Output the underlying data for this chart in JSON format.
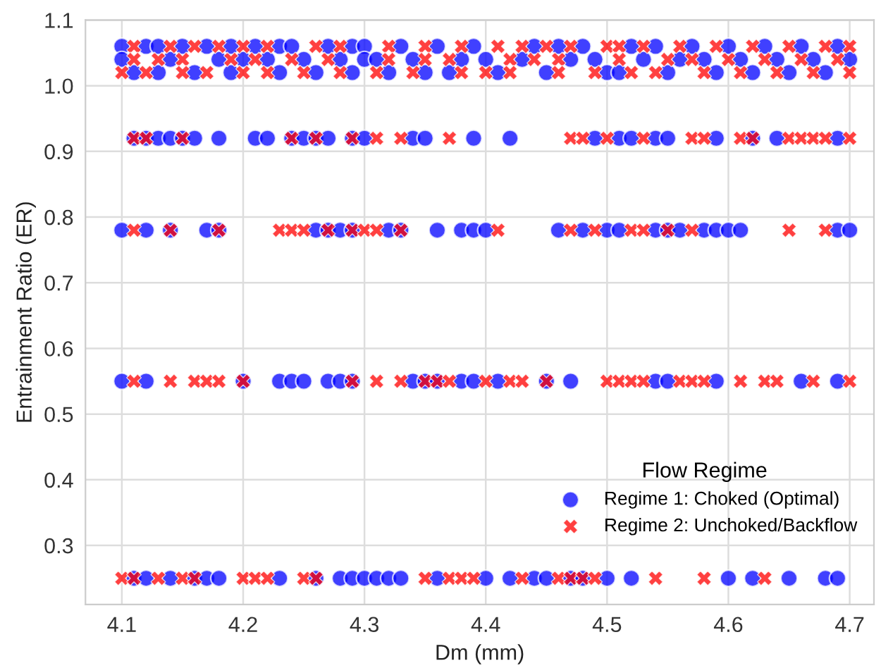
{
  "chart_data": {
    "type": "scatter",
    "xlabel": "Dm (mm)",
    "ylabel": "Entrainment Ratio (ER)",
    "legend_title": "Flow Regime",
    "xlim": [
      4.07,
      4.72
    ],
    "xticks": [
      4.1,
      4.2,
      4.3,
      4.4,
      4.5,
      4.6,
      4.7
    ],
    "ylim": [
      0.21,
      1.1
    ],
    "yticks": [
      0.3,
      0.4,
      0.5,
      0.6,
      0.7,
      0.8,
      0.9,
      {
        "value": 1.0,
        "label": "1.0"
      },
      1.1
    ],
    "grid": true,
    "legend": "bottom right",
    "series": [
      {
        "name": "Regime 1: Choked (Optimal)",
        "color": "#0000ff",
        "marker": "circle",
        "x": [
          4.1,
          4.12,
          4.13,
          4.15,
          4.17,
          4.19,
          4.21,
          4.23,
          4.24,
          4.27,
          4.29,
          4.3,
          4.33,
          4.36,
          4.39,
          4.44,
          4.46,
          4.48,
          4.52,
          4.54,
          4.57,
          4.6,
          4.63,
          4.66,
          4.69,
          4.1,
          4.14,
          4.18,
          4.2,
          4.22,
          4.25,
          4.28,
          4.3,
          4.31,
          4.34,
          4.38,
          4.4,
          4.43,
          4.47,
          4.49,
          4.53,
          4.56,
          4.58,
          4.61,
          4.64,
          4.67,
          4.7,
          4.11,
          4.13,
          4.16,
          4.19,
          4.23,
          4.26,
          4.29,
          4.32,
          4.35,
          4.37,
          4.41,
          4.45,
          4.5,
          4.51,
          4.55,
          4.59,
          4.62,
          4.65,
          4.68,
          4.11,
          4.12,
          4.13,
          4.14,
          4.15,
          4.16,
          4.18,
          4.21,
          4.22,
          4.24,
          4.25,
          4.26,
          4.27,
          4.29,
          4.3,
          4.34,
          4.35,
          4.39,
          4.42,
          4.49,
          4.51,
          4.52,
          4.54,
          4.55,
          4.59,
          4.62,
          4.64,
          4.69,
          4.1,
          4.12,
          4.14,
          4.17,
          4.18,
          4.26,
          4.27,
          4.28,
          4.29,
          4.32,
          4.33,
          4.36,
          4.38,
          4.39,
          4.4,
          4.46,
          4.48,
          4.5,
          4.51,
          4.54,
          4.55,
          4.56,
          4.58,
          4.59,
          4.6,
          4.61,
          4.69,
          4.7,
          4.1,
          4.12,
          4.2,
          4.23,
          4.24,
          4.25,
          4.27,
          4.28,
          4.29,
          4.34,
          4.35,
          4.36,
          4.38,
          4.39,
          4.41,
          4.45,
          4.47,
          4.54,
          4.55,
          4.59,
          4.66,
          4.69,
          4.11,
          4.12,
          4.14,
          4.16,
          4.17,
          4.18,
          4.23,
          4.26,
          4.28,
          4.29,
          4.3,
          4.31,
          4.32,
          4.33,
          4.36,
          4.4,
          4.42,
          4.44,
          4.45,
          4.47,
          4.48,
          4.5,
          4.52,
          4.6,
          4.62,
          4.65,
          4.68,
          4.69
        ],
        "values": [
          1.06,
          1.06,
          1.06,
          1.06,
          1.06,
          1.06,
          1.06,
          1.06,
          1.06,
          1.06,
          1.06,
          1.06,
          1.06,
          1.06,
          1.06,
          1.06,
          1.06,
          1.06,
          1.06,
          1.06,
          1.06,
          1.06,
          1.06,
          1.06,
          1.06,
          1.04,
          1.04,
          1.04,
          1.04,
          1.04,
          1.04,
          1.04,
          1.04,
          1.04,
          1.04,
          1.04,
          1.04,
          1.04,
          1.04,
          1.04,
          1.04,
          1.04,
          1.04,
          1.04,
          1.04,
          1.04,
          1.04,
          1.02,
          1.02,
          1.02,
          1.02,
          1.02,
          1.02,
          1.02,
          1.02,
          1.02,
          1.02,
          1.02,
          1.02,
          1.02,
          1.02,
          1.02,
          1.02,
          1.02,
          1.02,
          1.02,
          0.92,
          0.92,
          0.92,
          0.92,
          0.92,
          0.92,
          0.92,
          0.92,
          0.92,
          0.92,
          0.92,
          0.92,
          0.92,
          0.92,
          0.92,
          0.92,
          0.92,
          0.92,
          0.92,
          0.92,
          0.92,
          0.92,
          0.92,
          0.92,
          0.92,
          0.92,
          0.92,
          0.92,
          0.78,
          0.78,
          0.78,
          0.78,
          0.78,
          0.78,
          0.78,
          0.78,
          0.78,
          0.78,
          0.78,
          0.78,
          0.78,
          0.78,
          0.78,
          0.78,
          0.78,
          0.78,
          0.78,
          0.78,
          0.78,
          0.78,
          0.78,
          0.78,
          0.78,
          0.78,
          0.78,
          0.78,
          0.55,
          0.55,
          0.55,
          0.55,
          0.55,
          0.55,
          0.55,
          0.55,
          0.55,
          0.55,
          0.55,
          0.55,
          0.55,
          0.55,
          0.55,
          0.55,
          0.55,
          0.55,
          0.55,
          0.55,
          0.55,
          0.55,
          0.25,
          0.25,
          0.25,
          0.25,
          0.25,
          0.25,
          0.25,
          0.25,
          0.25,
          0.25,
          0.25,
          0.25,
          0.25,
          0.25,
          0.25,
          0.25,
          0.25,
          0.25,
          0.25,
          0.25,
          0.25,
          0.25,
          0.25,
          0.25,
          0.25,
          0.25,
          0.25,
          0.25
        ]
      },
      {
        "name": "Regime 2: Unchoked/Backflow",
        "color": "#ff0000",
        "marker": "cross",
        "x": [
          4.11,
          4.14,
          4.16,
          4.18,
          4.2,
          4.22,
          4.26,
          4.28,
          4.32,
          4.35,
          4.38,
          4.41,
          4.43,
          4.45,
          4.47,
          4.5,
          4.51,
          4.53,
          4.56,
          4.59,
          4.62,
          4.65,
          4.68,
          4.7,
          4.11,
          4.13,
          4.15,
          4.19,
          4.21,
          4.24,
          4.27,
          4.32,
          4.35,
          4.37,
          4.42,
          4.44,
          4.46,
          4.51,
          4.55,
          4.57,
          4.6,
          4.63,
          4.66,
          4.69,
          4.1,
          4.12,
          4.15,
          4.17,
          4.2,
          4.22,
          4.25,
          4.28,
          4.31,
          4.34,
          4.38,
          4.4,
          4.42,
          4.46,
          4.49,
          4.52,
          4.54,
          4.58,
          4.61,
          4.64,
          4.67,
          4.7,
          4.11,
          4.12,
          4.15,
          4.24,
          4.26,
          4.29,
          4.31,
          4.33,
          4.37,
          4.47,
          4.48,
          4.5,
          4.53,
          4.57,
          4.58,
          4.61,
          4.62,
          4.65,
          4.66,
          4.67,
          4.68,
          4.7,
          4.11,
          4.14,
          4.18,
          4.23,
          4.24,
          4.25,
          4.27,
          4.29,
          4.3,
          4.31,
          4.33,
          4.41,
          4.47,
          4.49,
          4.52,
          4.53,
          4.55,
          4.57,
          4.65,
          4.68,
          4.11,
          4.14,
          4.16,
          4.17,
          4.18,
          4.2,
          4.29,
          4.31,
          4.33,
          4.35,
          4.36,
          4.37,
          4.4,
          4.42,
          4.43,
          4.45,
          4.5,
          4.51,
          4.52,
          4.53,
          4.56,
          4.57,
          4.58,
          4.61,
          4.63,
          4.64,
          4.67,
          4.7,
          4.1,
          4.11,
          4.13,
          4.15,
          4.16,
          4.2,
          4.21,
          4.22,
          4.25,
          4.26,
          4.35,
          4.37,
          4.38,
          4.39,
          4.43,
          4.46,
          4.47,
          4.48,
          4.49,
          4.54,
          4.58,
          4.63
        ],
        "values": [
          1.06,
          1.06,
          1.06,
          1.06,
          1.06,
          1.06,
          1.06,
          1.06,
          1.06,
          1.06,
          1.06,
          1.06,
          1.06,
          1.06,
          1.06,
          1.06,
          1.06,
          1.06,
          1.06,
          1.06,
          1.06,
          1.06,
          1.06,
          1.06,
          1.04,
          1.04,
          1.04,
          1.04,
          1.04,
          1.04,
          1.04,
          1.04,
          1.04,
          1.04,
          1.04,
          1.04,
          1.04,
          1.04,
          1.04,
          1.04,
          1.04,
          1.04,
          1.04,
          1.04,
          1.02,
          1.02,
          1.02,
          1.02,
          1.02,
          1.02,
          1.02,
          1.02,
          1.02,
          1.02,
          1.02,
          1.02,
          1.02,
          1.02,
          1.02,
          1.02,
          1.02,
          1.02,
          1.02,
          1.02,
          1.02,
          1.02,
          0.92,
          0.92,
          0.92,
          0.92,
          0.92,
          0.92,
          0.92,
          0.92,
          0.92,
          0.92,
          0.92,
          0.92,
          0.92,
          0.92,
          0.92,
          0.92,
          0.92,
          0.92,
          0.92,
          0.92,
          0.92,
          0.92,
          0.78,
          0.78,
          0.78,
          0.78,
          0.78,
          0.78,
          0.78,
          0.78,
          0.78,
          0.78,
          0.78,
          0.78,
          0.78,
          0.78,
          0.78,
          0.78,
          0.78,
          0.78,
          0.78,
          0.78,
          0.55,
          0.55,
          0.55,
          0.55,
          0.55,
          0.55,
          0.55,
          0.55,
          0.55,
          0.55,
          0.55,
          0.55,
          0.55,
          0.55,
          0.55,
          0.55,
          0.55,
          0.55,
          0.55,
          0.55,
          0.55,
          0.55,
          0.55,
          0.55,
          0.55,
          0.55,
          0.55,
          0.55,
          0.25,
          0.25,
          0.25,
          0.25,
          0.25,
          0.25,
          0.25,
          0.25,
          0.25,
          0.25,
          0.25,
          0.25,
          0.25,
          0.25,
          0.25,
          0.25,
          0.25,
          0.25,
          0.25,
          0.25,
          0.25,
          0.25
        ]
      }
    ]
  }
}
